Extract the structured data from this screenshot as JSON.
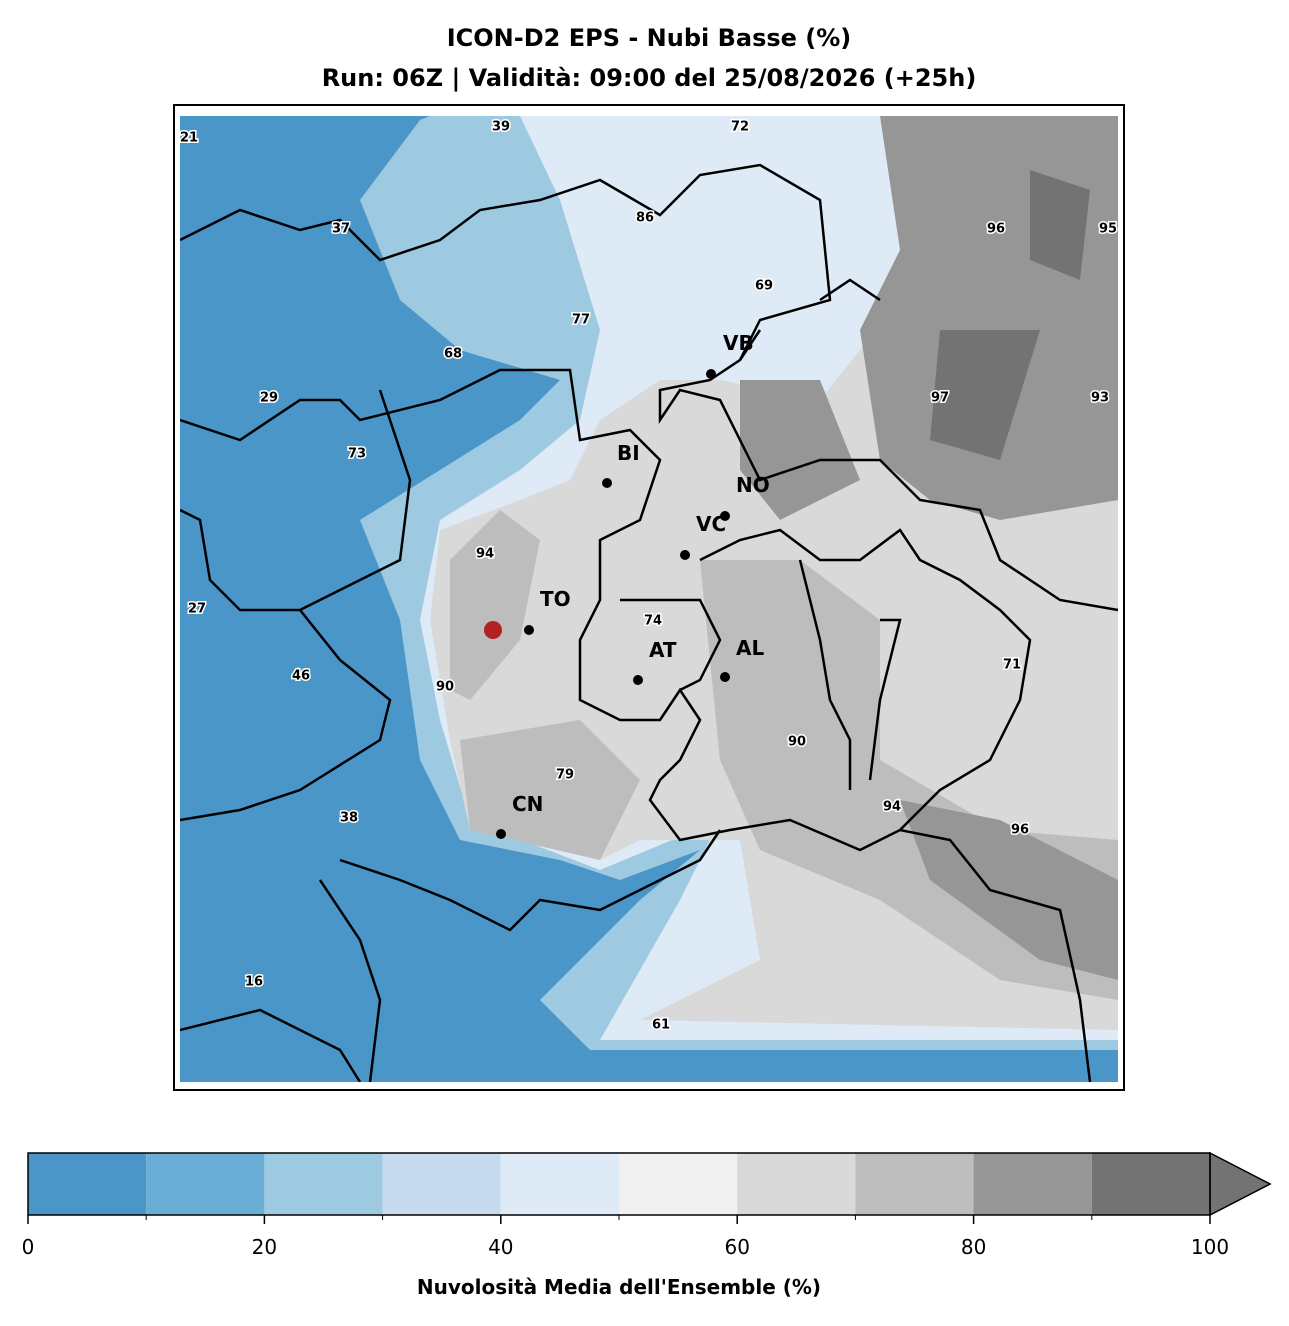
{
  "header": {
    "title": "ICON-D2 EPS - Nubi Basse (%)",
    "subtitle": "Run: 06Z | Validità: 09:00 del 25/08/2026 (+25h)"
  },
  "cities": [
    "VB",
    "BI",
    "NO",
    "VC",
    "TO",
    "AT",
    "AL",
    "CN"
  ],
  "point_values": [
    21,
    39,
    72,
    37,
    86,
    96,
    95,
    69,
    77,
    68,
    29,
    97,
    93,
    73,
    94,
    27,
    74,
    71,
    46,
    90,
    90,
    79,
    94,
    38,
    96,
    16,
    61
  ],
  "colorbar": {
    "levels": [
      0,
      10,
      20,
      30,
      40,
      50,
      60,
      70,
      80,
      90,
      100
    ],
    "colors": [
      "#4a96c9",
      "#6aaed6",
      "#9ecae1",
      "#c6dbef",
      "#deebf7",
      "#f0f0f0",
      "#d9d9d9",
      "#bdbdbd",
      "#969696",
      "#737373"
    ],
    "ticks": [
      0,
      20,
      40,
      60,
      80,
      100
    ],
    "extend": "max",
    "label": "Nuvolosità Media dell'Ensemble (%)"
  }
}
